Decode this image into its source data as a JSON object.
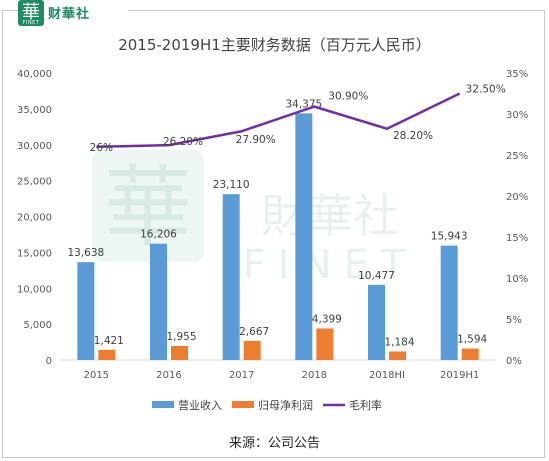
{
  "brand": {
    "logo_char": "華",
    "logo_sub": "FINET",
    "name": "财華社"
  },
  "watermark": {
    "chars": "財華社",
    "latin": "FINET"
  },
  "title": "2015-2019H1主要财务数据（百万元人民币）",
  "source": "来源：公司公告",
  "colors": {
    "revenue": "#5b9bd5",
    "profit": "#ed7d31",
    "margin": "#7030a0",
    "brand": "#1f8a63"
  },
  "chart_data": {
    "type": "bar",
    "categories": [
      "2015",
      "2016",
      "2017",
      "2018",
      "2018HI",
      "2019H1"
    ],
    "series": [
      {
        "name": "营业收入",
        "type": "bar",
        "axis": "left",
        "values": [
          13638,
          16206,
          23110,
          34375,
          10477,
          15943
        ],
        "labels": [
          "13,638",
          "16,206",
          "23,110",
          "34,375",
          "10,477",
          "15,943"
        ]
      },
      {
        "name": "归母净利润",
        "type": "bar",
        "axis": "left",
        "values": [
          1421,
          1955,
          2667,
          4399,
          1184,
          1594
        ],
        "labels": [
          "1,421",
          "1,955",
          "2,667",
          "4,399",
          "1,184",
          "1,594"
        ]
      },
      {
        "name": "毛利率",
        "type": "line",
        "axis": "right",
        "values": [
          26.0,
          26.2,
          27.9,
          30.9,
          28.2,
          32.5
        ],
        "labels": [
          "26%",
          "26.20%",
          "27.90%",
          "30.90%",
          "28.20%",
          "32.50%"
        ]
      }
    ],
    "ylim_left": [
      0,
      40000
    ],
    "yticks_left": [
      "0",
      "5,000",
      "10,000",
      "15,000",
      "20,000",
      "25,000",
      "30,000",
      "35,000",
      "40,000"
    ],
    "ylim_right": [
      0,
      35
    ],
    "yticks_right": [
      "0%",
      "5%",
      "10%",
      "15%",
      "20%",
      "25%",
      "30%",
      "35%"
    ],
    "legend_position": "bottom",
    "grid": false
  }
}
